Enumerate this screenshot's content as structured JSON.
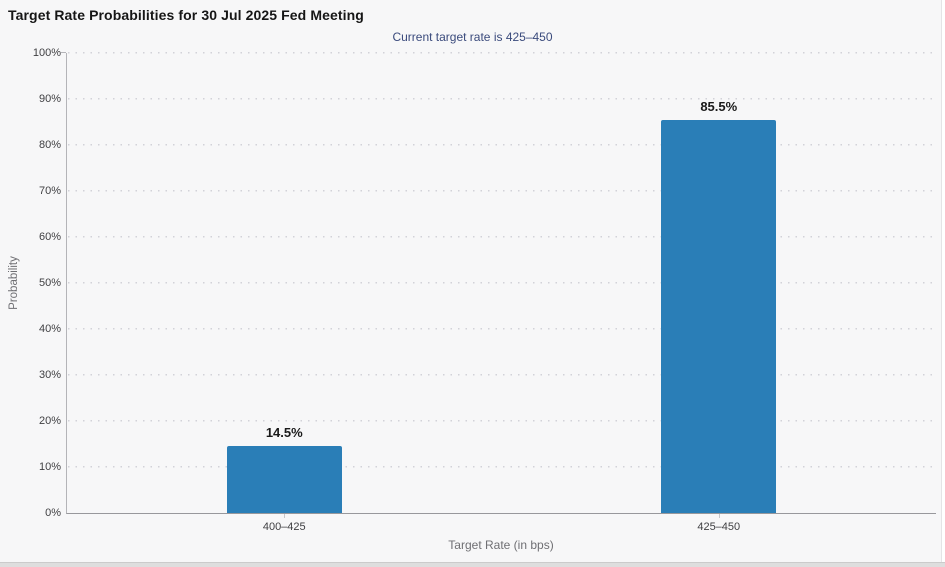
{
  "chart_data": {
    "type": "bar",
    "title": "Target Rate Probabilities for 30 Jul 2025 Fed Meeting",
    "subtitle": "Current target rate is 425–450",
    "categories": [
      "400–425",
      "425–450"
    ],
    "values": [
      14.5,
      85.5
    ],
    "value_labels": [
      "14.5%",
      "85.5%"
    ],
    "xlabel": "Target Rate (in bps)",
    "ylabel": "Probability",
    "ylim": [
      0,
      100
    ],
    "ytick_step": 10,
    "ytick_labels": [
      "0%",
      "10%",
      "20%",
      "30%",
      "40%",
      "50%",
      "60%",
      "70%",
      "80%",
      "90%",
      "100%"
    ],
    "grid": "dotted-horizontal",
    "legend": "none",
    "bar_color": "#2a7eb7"
  },
  "colors": {
    "background": "#f7f7f8",
    "bar": "#2a7eb7",
    "title_text": "#161616",
    "subtitle_text": "#3a4a7c",
    "tick_text": "#3f3f42",
    "axis_title_text": "#6f6f73",
    "grid_dot": "#d2d2d8",
    "y_axis_line": "#b4b4b8",
    "x_axis_line": "#98989c",
    "bottom_strip": "#dedede"
  }
}
